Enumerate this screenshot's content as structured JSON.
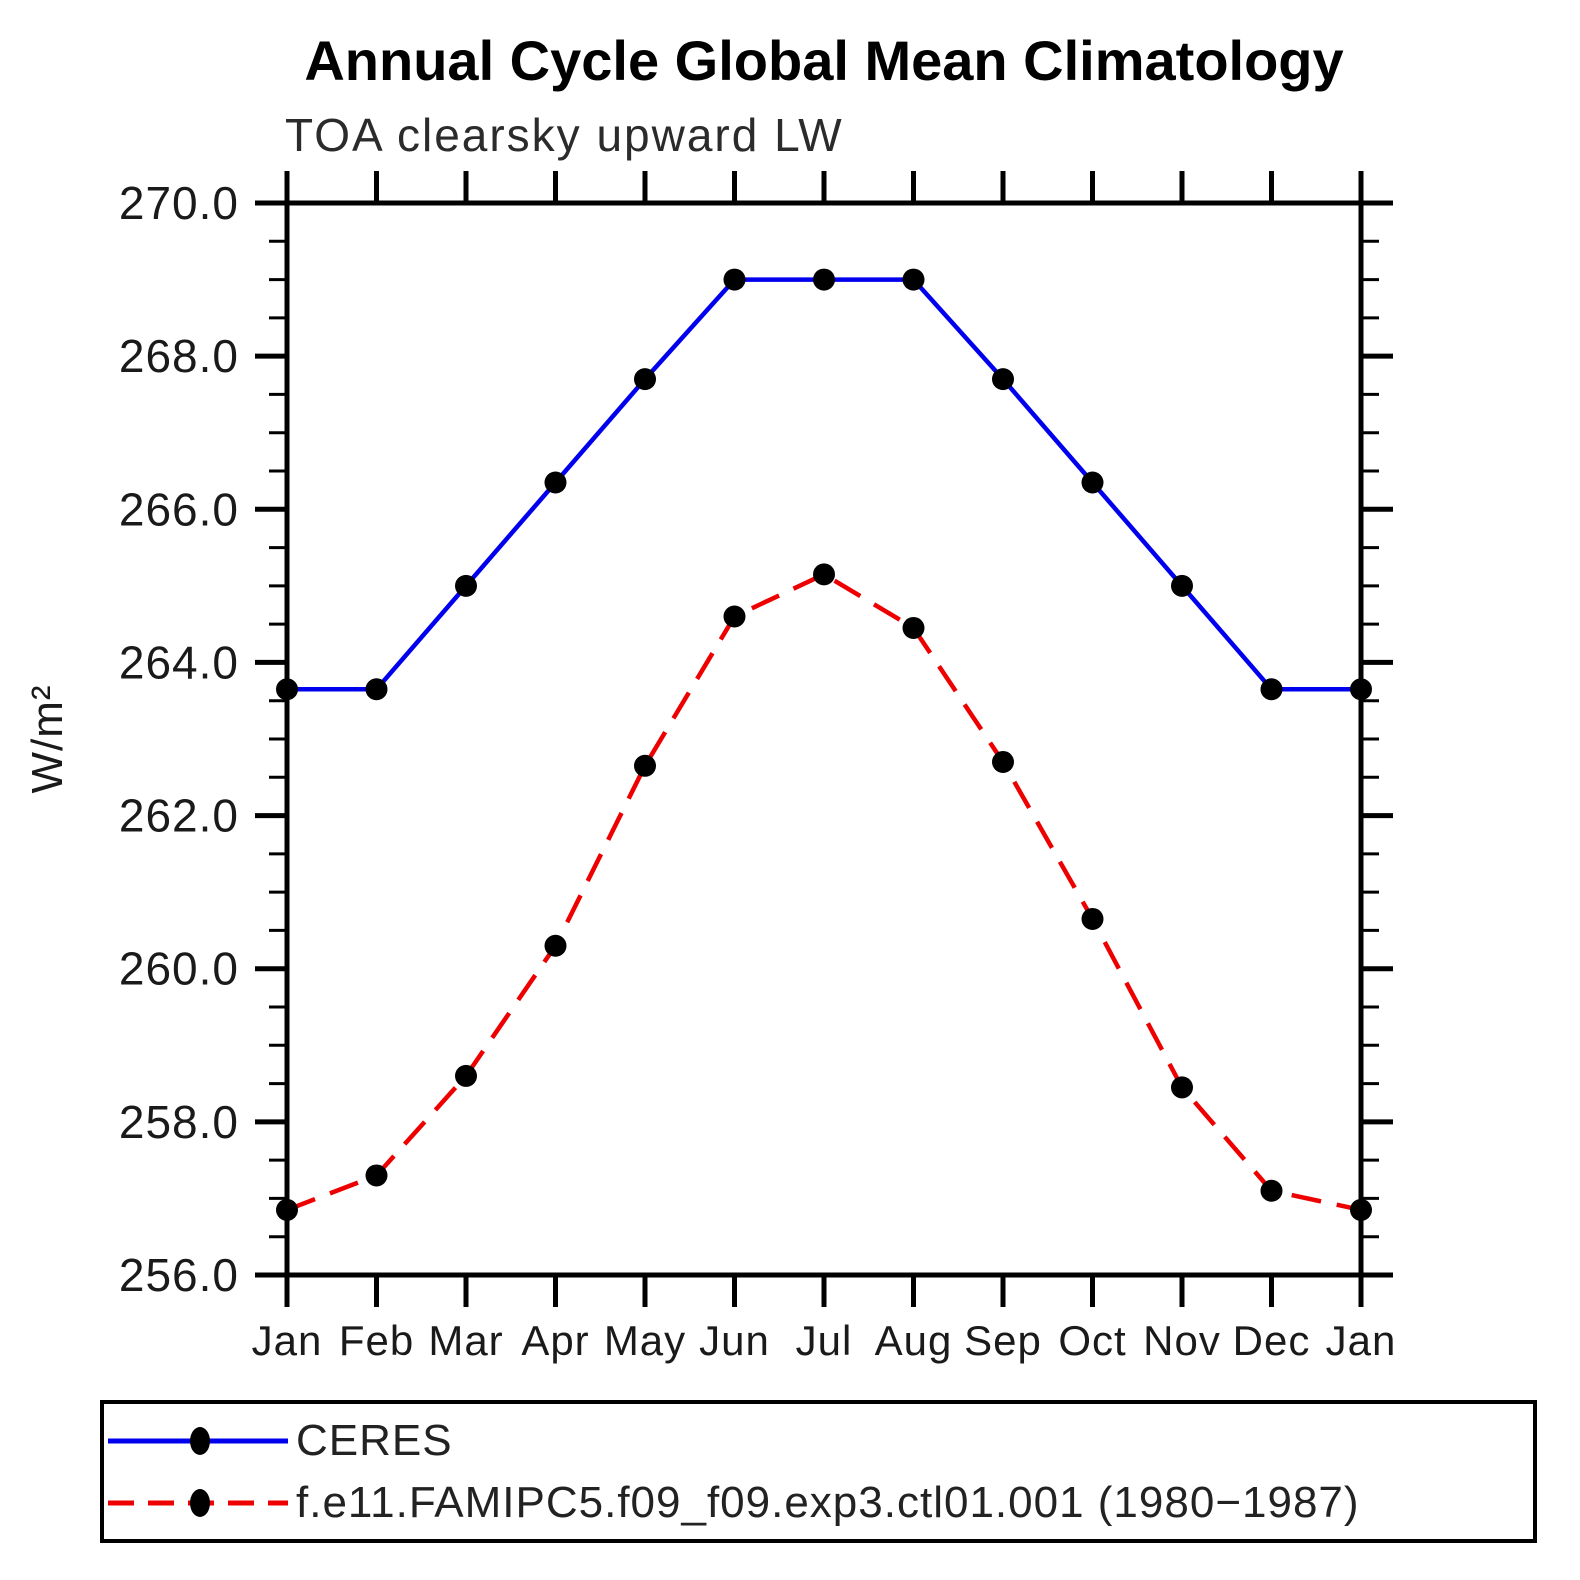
{
  "title": "Annual Cycle Global Mean Climatology",
  "subtitle": "TOA clearsky upward LW",
  "y_axis": {
    "label": "W/m²",
    "min": 256.0,
    "max": 270.0,
    "major_step": 2.0,
    "minor_step": 0.5,
    "major_tick_labels": [
      "270.0",
      "268.0",
      "266.0",
      "264.0",
      "262.0",
      "260.0",
      "258.0",
      "256.0"
    ]
  },
  "x_axis": {
    "categories": [
      "Jan",
      "Feb",
      "Mar",
      "Apr",
      "May",
      "Jun",
      "Jul",
      "Aug",
      "Sep",
      "Oct",
      "Nov",
      "Dec",
      "Jan"
    ]
  },
  "legend": [
    {
      "label": "CERES",
      "color": "#0000ee",
      "line_style": "solid",
      "marker_color": "#000000"
    },
    {
      "label": "f.e11.FAMIPC5.f09_f09.exp3.ctl01.001 (1980−1987)",
      "color": "#ee0000",
      "line_style": "dashed",
      "marker_color": "#000000"
    }
  ],
  "chart_data": {
    "type": "line",
    "title": "Annual Cycle Global Mean Climatology",
    "subtitle": "TOA clearsky upward LW",
    "xlabel": "",
    "ylabel": "W/m²",
    "ylim": [
      256.0,
      270.0
    ],
    "grid": false,
    "legend_position": "bottom-left box",
    "x": [
      "Jan",
      "Feb",
      "Mar",
      "Apr",
      "May",
      "Jun",
      "Jul",
      "Aug",
      "Sep",
      "Oct",
      "Nov",
      "Dec",
      "Jan"
    ],
    "series": [
      {
        "name": "CERES",
        "color": "#0000ee",
        "line_style": "solid",
        "marker": "filled-circle",
        "marker_color": "#000000",
        "values": [
          263.65,
          263.65,
          265.0,
          266.35,
          267.7,
          269.0,
          269.0,
          269.0,
          267.7,
          266.35,
          265.0,
          263.65,
          263.65
        ]
      },
      {
        "name": "f.e11.FAMIPC5.f09_f09.exp3.ctl01.001 (1980−1987)",
        "color": "#ee0000",
        "line_style": "dashed",
        "marker": "filled-circle",
        "marker_color": "#000000",
        "values": [
          256.85,
          257.3,
          258.6,
          260.3,
          262.65,
          264.6,
          265.15,
          264.45,
          262.7,
          260.65,
          258.45,
          257.1,
          256.85
        ]
      }
    ]
  }
}
